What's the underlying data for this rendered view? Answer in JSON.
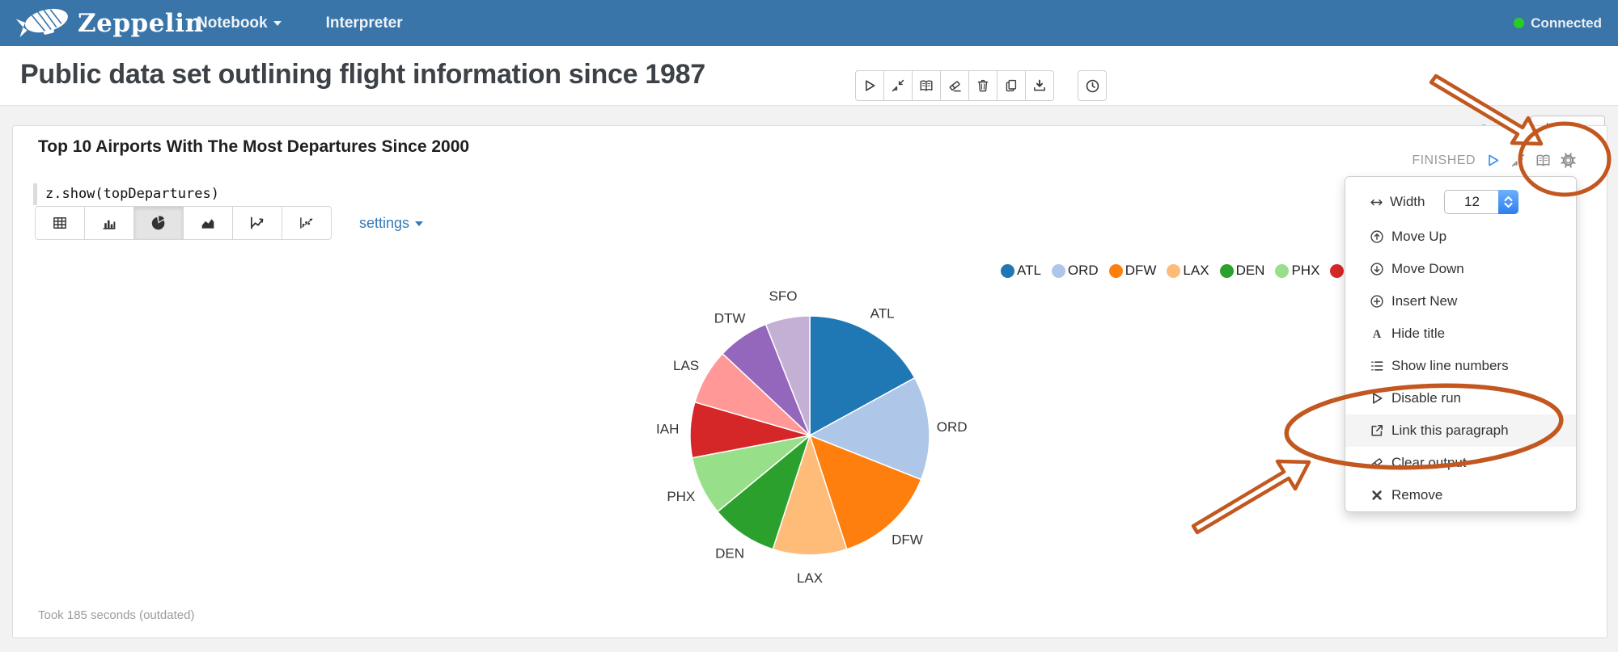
{
  "colors": {
    "navbar_bg": "#3a75a9",
    "accent_blue": "#337ab7",
    "status_green": "#27cd27",
    "play_blue": "#3b8ff3",
    "status_text": "#9a9a9a",
    "annotation_orange": "#c2571f"
  },
  "navbar": {
    "brand": "Zeppelin",
    "logo_icon": "zeppelin-logo-icon",
    "items": [
      {
        "label": "Notebook",
        "caret": true
      },
      {
        "label": "Interpreter",
        "caret": false
      }
    ],
    "status": {
      "label": "Connected"
    }
  },
  "note_header": {
    "title": "Public data set outlining flight information since 1987",
    "toolbar": [
      {
        "icon": "play-icon",
        "name": "run-all-paragraphs-button"
      },
      {
        "icon": "compress-icon",
        "name": "collapse-paragraphs-button"
      },
      {
        "icon": "book-icon",
        "name": "toggle-code-button"
      },
      {
        "icon": "eraser-icon",
        "name": "clear-all-output-button"
      },
      {
        "icon": "trash-icon",
        "name": "delete-note-button"
      },
      {
        "icon": "copy-icon",
        "name": "clone-note-button"
      },
      {
        "icon": "download-icon",
        "name": "export-note-button"
      }
    ],
    "scheduler": {
      "icon": "clock-icon",
      "name": "scheduler-button"
    },
    "right": {
      "help_icon": "question-circle-icon",
      "settings_icon": "gear-icon",
      "interpreter_label": "default"
    }
  },
  "paragraph": {
    "title": "Top 10 Airports With The Most Departures Since 2000",
    "code": "z.show(topDepartures)",
    "status": "FINISHED",
    "status_icons": [
      {
        "icon": "play-icon",
        "name": "run-paragraph-button",
        "blue": true
      },
      {
        "icon": "compress-icon",
        "name": "collapse-paragraph-button",
        "blue": false
      },
      {
        "icon": "book-icon",
        "name": "toggle-editor-button",
        "blue": false
      },
      {
        "icon": "gear-icon",
        "name": "paragraph-settings-button",
        "blue": false
      }
    ],
    "chart_tabs": [
      {
        "icon": "table-icon",
        "name": "table",
        "active": false
      },
      {
        "icon": "bar-chart-icon",
        "name": "bar-chart",
        "active": false
      },
      {
        "icon": "pie-chart-icon",
        "name": "pie-chart",
        "active": true
      },
      {
        "icon": "area-chart-icon",
        "name": "area-chart",
        "active": false
      },
      {
        "icon": "line-chart-icon",
        "name": "line-chart",
        "active": false
      },
      {
        "icon": "scatter-chart-icon",
        "name": "scatter-chart",
        "active": false
      }
    ],
    "settings_label": "settings",
    "footer": "Took 185 seconds (outdated)"
  },
  "chart_data": {
    "type": "pie",
    "title": "Top 10 Airports With The Most Departures Since 2000",
    "categories": [
      "ATL",
      "ORD",
      "DFW",
      "LAX",
      "DEN",
      "PHX",
      "IAH",
      "LAS",
      "DTW",
      "SFO"
    ],
    "values": [
      17,
      14,
      14,
      10,
      9,
      8,
      7.5,
      7.5,
      7,
      6
    ],
    "value_note": "share of departures in %, estimated from wedge angles",
    "colors": [
      "#1f77b4",
      "#aec7e8",
      "#ff7f0e",
      "#ffbb78",
      "#2ca02c",
      "#98df8a",
      "#d62728",
      "#ff9896",
      "#9467bd",
      "#c5b0d5"
    ],
    "legend_position": "top-right",
    "legend_visible_count": 7
  },
  "menu": {
    "width_icon": "width-icon",
    "width_label": "Width",
    "width_value": "12",
    "items": [
      {
        "label": "Move Up",
        "icon": "arrow-up-circle-icon",
        "highlighted": false
      },
      {
        "label": "Move Down",
        "icon": "arrow-down-circle-icon",
        "highlighted": false
      },
      {
        "label": "Insert New",
        "icon": "plus-circle-icon",
        "highlighted": false
      },
      {
        "label": "Hide title",
        "icon": "font-icon",
        "highlighted": false
      },
      {
        "label": "Show line numbers",
        "icon": "list-numbers-icon",
        "highlighted": false
      },
      {
        "label": "Disable run",
        "icon": "play-outline-icon",
        "highlighted": false
      },
      {
        "label": "Link this paragraph",
        "icon": "external-link-icon",
        "highlighted": true
      },
      {
        "label": "Clear output",
        "icon": "eraser-icon",
        "highlighted": false
      },
      {
        "label": "Remove",
        "icon": "remove-icon",
        "highlighted": false
      }
    ]
  }
}
